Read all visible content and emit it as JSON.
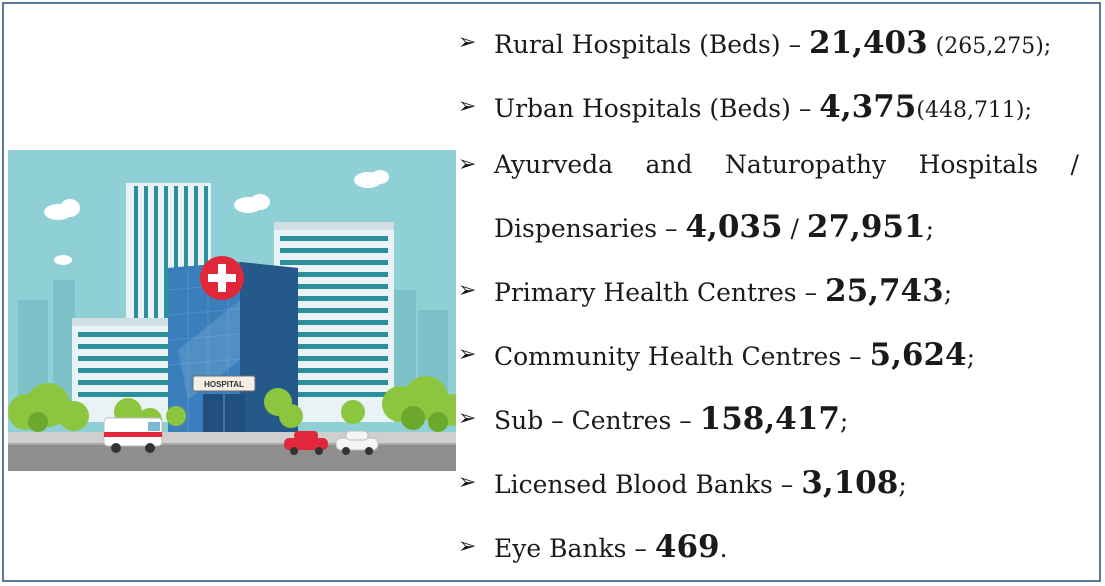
{
  "image": {
    "building_sign": "HOSPITAL",
    "colors": {
      "sky": "#8fd0d6",
      "building_blue": "#2d6ea8",
      "building_light": "#e9f2f4",
      "stripe": "#2d8f9c",
      "tree": "#8cc63f",
      "road": "#8e8e8e",
      "cross_red": "#e0283a"
    }
  },
  "items": [
    {
      "label": "Rural Hospitals (Beds) –",
      "value": "21,403",
      "extra": "(265,275);"
    },
    {
      "label": "Urban Hospitals (Beds) –",
      "value": "4,375",
      "extra": "(448,711);"
    },
    {
      "line1_words": [
        "Ayurveda",
        "and",
        "Naturopathy",
        "Hospitals",
        "/"
      ],
      "label": "Dispensaries –",
      "value": "4,035",
      "sep": "/",
      "value2": "27,951",
      "suffix": ";"
    },
    {
      "label": "Primary Health Centres –",
      "value": "25,743",
      "suffix": ";"
    },
    {
      "label": "Community Health Centres –",
      "value": "5,624",
      "suffix": ";"
    },
    {
      "label": "Sub – Centres –",
      "value": "158,417",
      "suffix": ";"
    },
    {
      "label": "Licensed Blood Banks –",
      "value": "3,108",
      "suffix": ";"
    },
    {
      "label": "Eye Banks –",
      "value": "469",
      "suffix": "."
    }
  ]
}
